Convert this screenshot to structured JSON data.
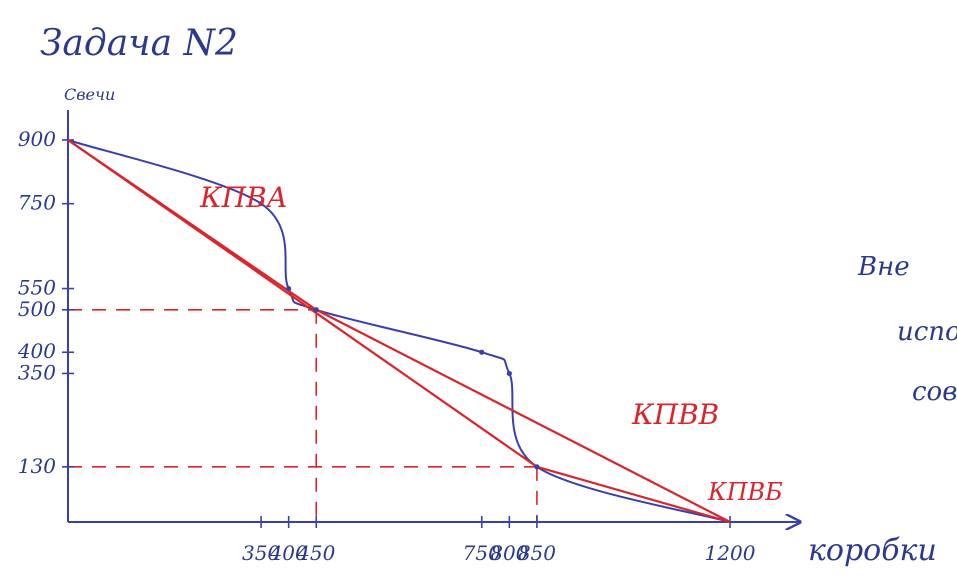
{
  "page": {
    "heading": "Задача N2",
    "side_note": [
      "Вне",
      "испо",
      "сов"
    ]
  },
  "colors": {
    "axis": "#3a3fb0",
    "curve": "#3a3fb0",
    "line": "#d9252b",
    "text_blue": "#2b3a8f",
    "text_red": "#d9252b"
  },
  "chart_data": {
    "type": "line",
    "title": "",
    "xlabel": "коробки",
    "ylabel": "Свечи",
    "xlim": [
      0,
      1200
    ],
    "ylim": [
      0,
      900
    ],
    "x_tick_labels": [
      "350",
      "400",
      "450",
      "750",
      "800",
      "850",
      "1200"
    ],
    "y_tick_labels": [
      "900",
      "750",
      "550",
      "500",
      "400",
      "350",
      "130"
    ],
    "series": [
      {
        "name": "",
        "kind": "curve",
        "points": [
          [
            0,
            900
          ],
          [
            350,
            750
          ],
          [
            400,
            550
          ],
          [
            450,
            500
          ],
          [
            750,
            400
          ],
          [
            800,
            350
          ],
          [
            850,
            130
          ],
          [
            1200,
            0
          ]
        ]
      },
      {
        "name": "КПВА",
        "kind": "polyline",
        "points": [
          [
            0,
            900
          ],
          [
            450,
            500
          ],
          [
            1200,
            0
          ]
        ]
      },
      {
        "name": "КПВВ",
        "kind": "polyline",
        "points": [
          [
            0,
            900
          ],
          [
            850,
            130
          ]
        ]
      },
      {
        "name": "КПВБ",
        "kind": "polyline",
        "points": [
          [
            850,
            130
          ],
          [
            1200,
            0
          ]
        ]
      }
    ],
    "guides": [
      {
        "x": 450,
        "y": 500
      },
      {
        "x": 850,
        "y": 130
      }
    ],
    "annotations": {
      "kpva": "КПВА",
      "kpvv": "КПВВ",
      "kpvb": "КПВБ"
    }
  }
}
